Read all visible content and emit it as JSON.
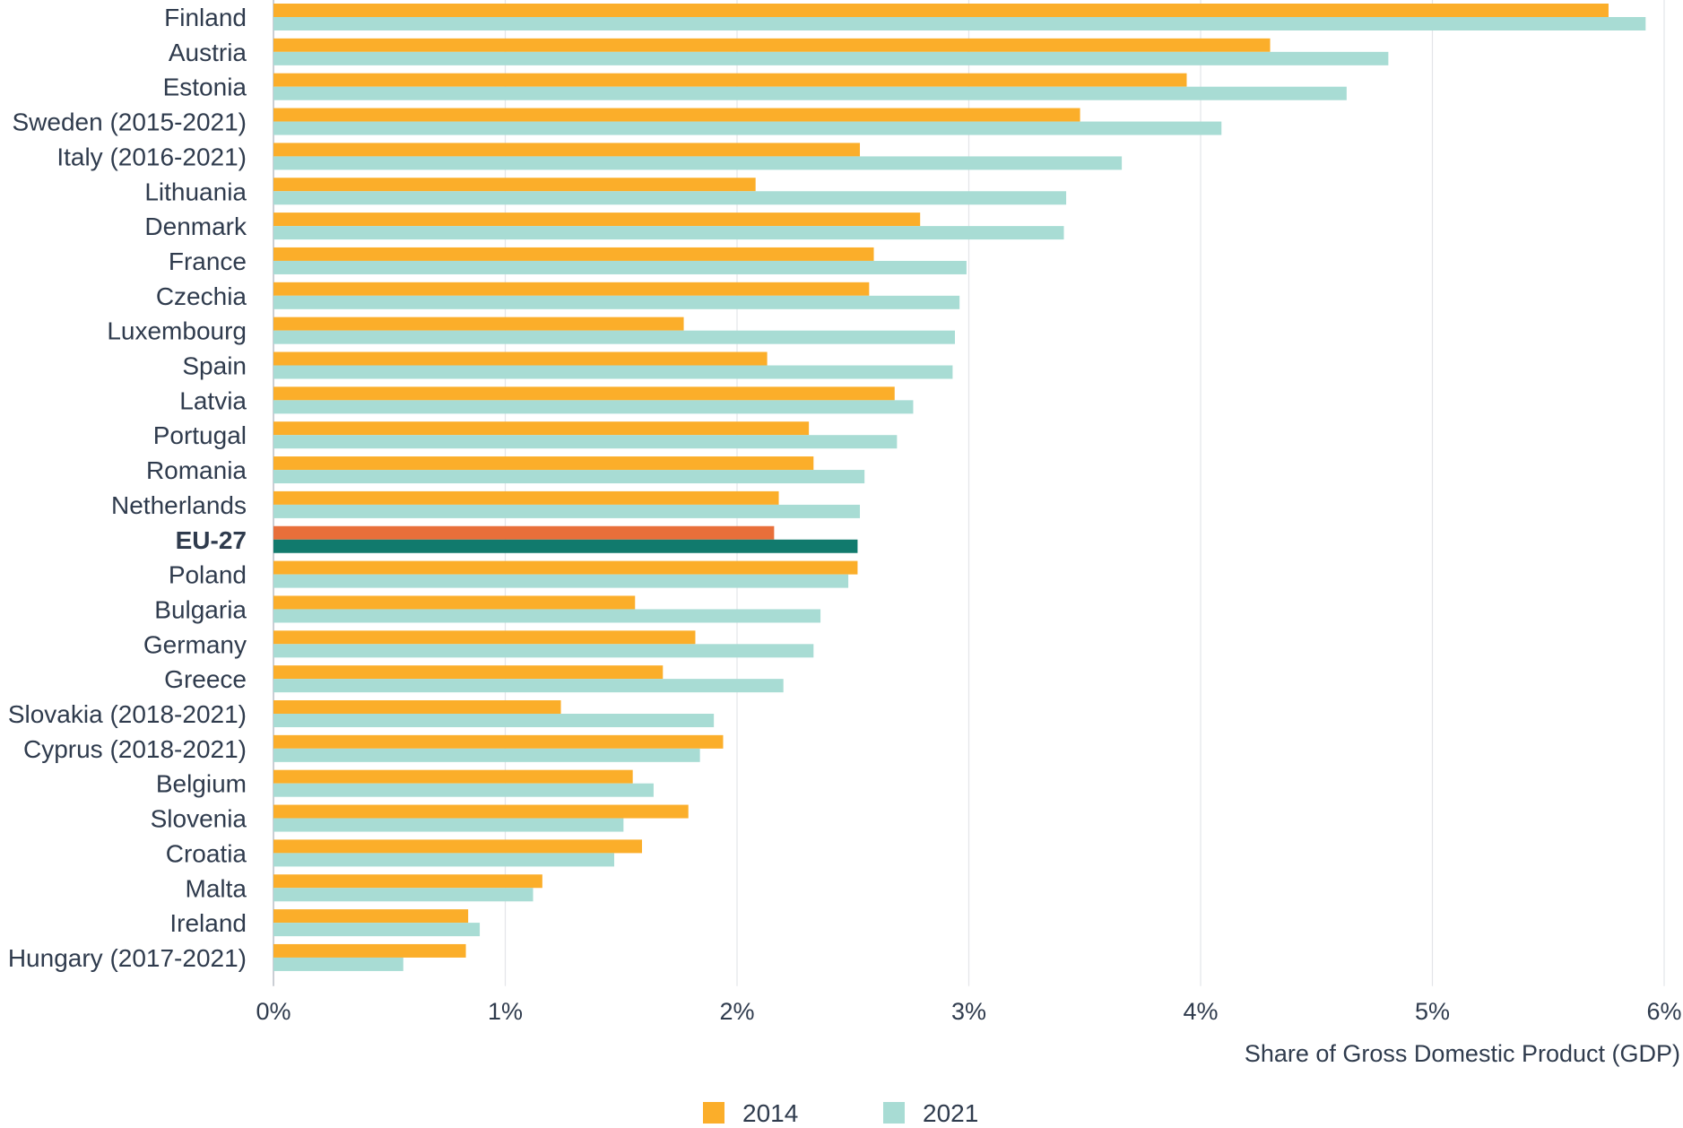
{
  "chart_data": {
    "type": "bar",
    "orientation": "horizontal",
    "xlabel": "Share of Gross Domestic Product (GDP)",
    "xlim": [
      0,
      6
    ],
    "x_ticks": [
      "0%",
      "1%",
      "2%",
      "3%",
      "4%",
      "5%",
      "6%"
    ],
    "grid": true,
    "legend_position": "bottom-center",
    "categories": [
      "Finland",
      "Austria",
      "Estonia",
      "Sweden (2015-2021)",
      "Italy (2016-2021)",
      "Lithuania",
      "Denmark",
      "France",
      "Czechia",
      "Luxembourg",
      "Spain",
      "Latvia",
      "Portugal",
      "Romania",
      "Netherlands",
      "EU-27",
      "Poland",
      "Bulgaria",
      "Germany",
      "Greece",
      "Slovakia (2018-2021)",
      "Cyprus (2018-2021)",
      "Belgium",
      "Slovenia",
      "Croatia",
      "Malta",
      "Ireland",
      "Hungary (2017-2021)"
    ],
    "highlight_category": "EU-27",
    "series": [
      {
        "name": "2014",
        "color": "#fbae2a",
        "highlight_color": "#e86f3a",
        "values": [
          5.76,
          4.3,
          3.94,
          3.48,
          2.53,
          2.08,
          2.79,
          2.59,
          2.57,
          1.77,
          2.13,
          2.68,
          2.31,
          2.33,
          2.18,
          2.16,
          2.52,
          1.56,
          1.82,
          1.68,
          1.24,
          1.94,
          1.55,
          1.79,
          1.59,
          1.16,
          0.84,
          0.83
        ]
      },
      {
        "name": "2021",
        "color": "#a8dcd4",
        "highlight_color": "#117a6d",
        "values": [
          5.92,
          4.81,
          4.63,
          4.09,
          3.66,
          3.42,
          3.41,
          2.99,
          2.96,
          2.94,
          2.93,
          2.76,
          2.69,
          2.55,
          2.53,
          2.52,
          2.48,
          2.36,
          2.33,
          2.2,
          1.9,
          1.84,
          1.64,
          1.51,
          1.47,
          1.12,
          0.89,
          0.56
        ]
      }
    ]
  }
}
